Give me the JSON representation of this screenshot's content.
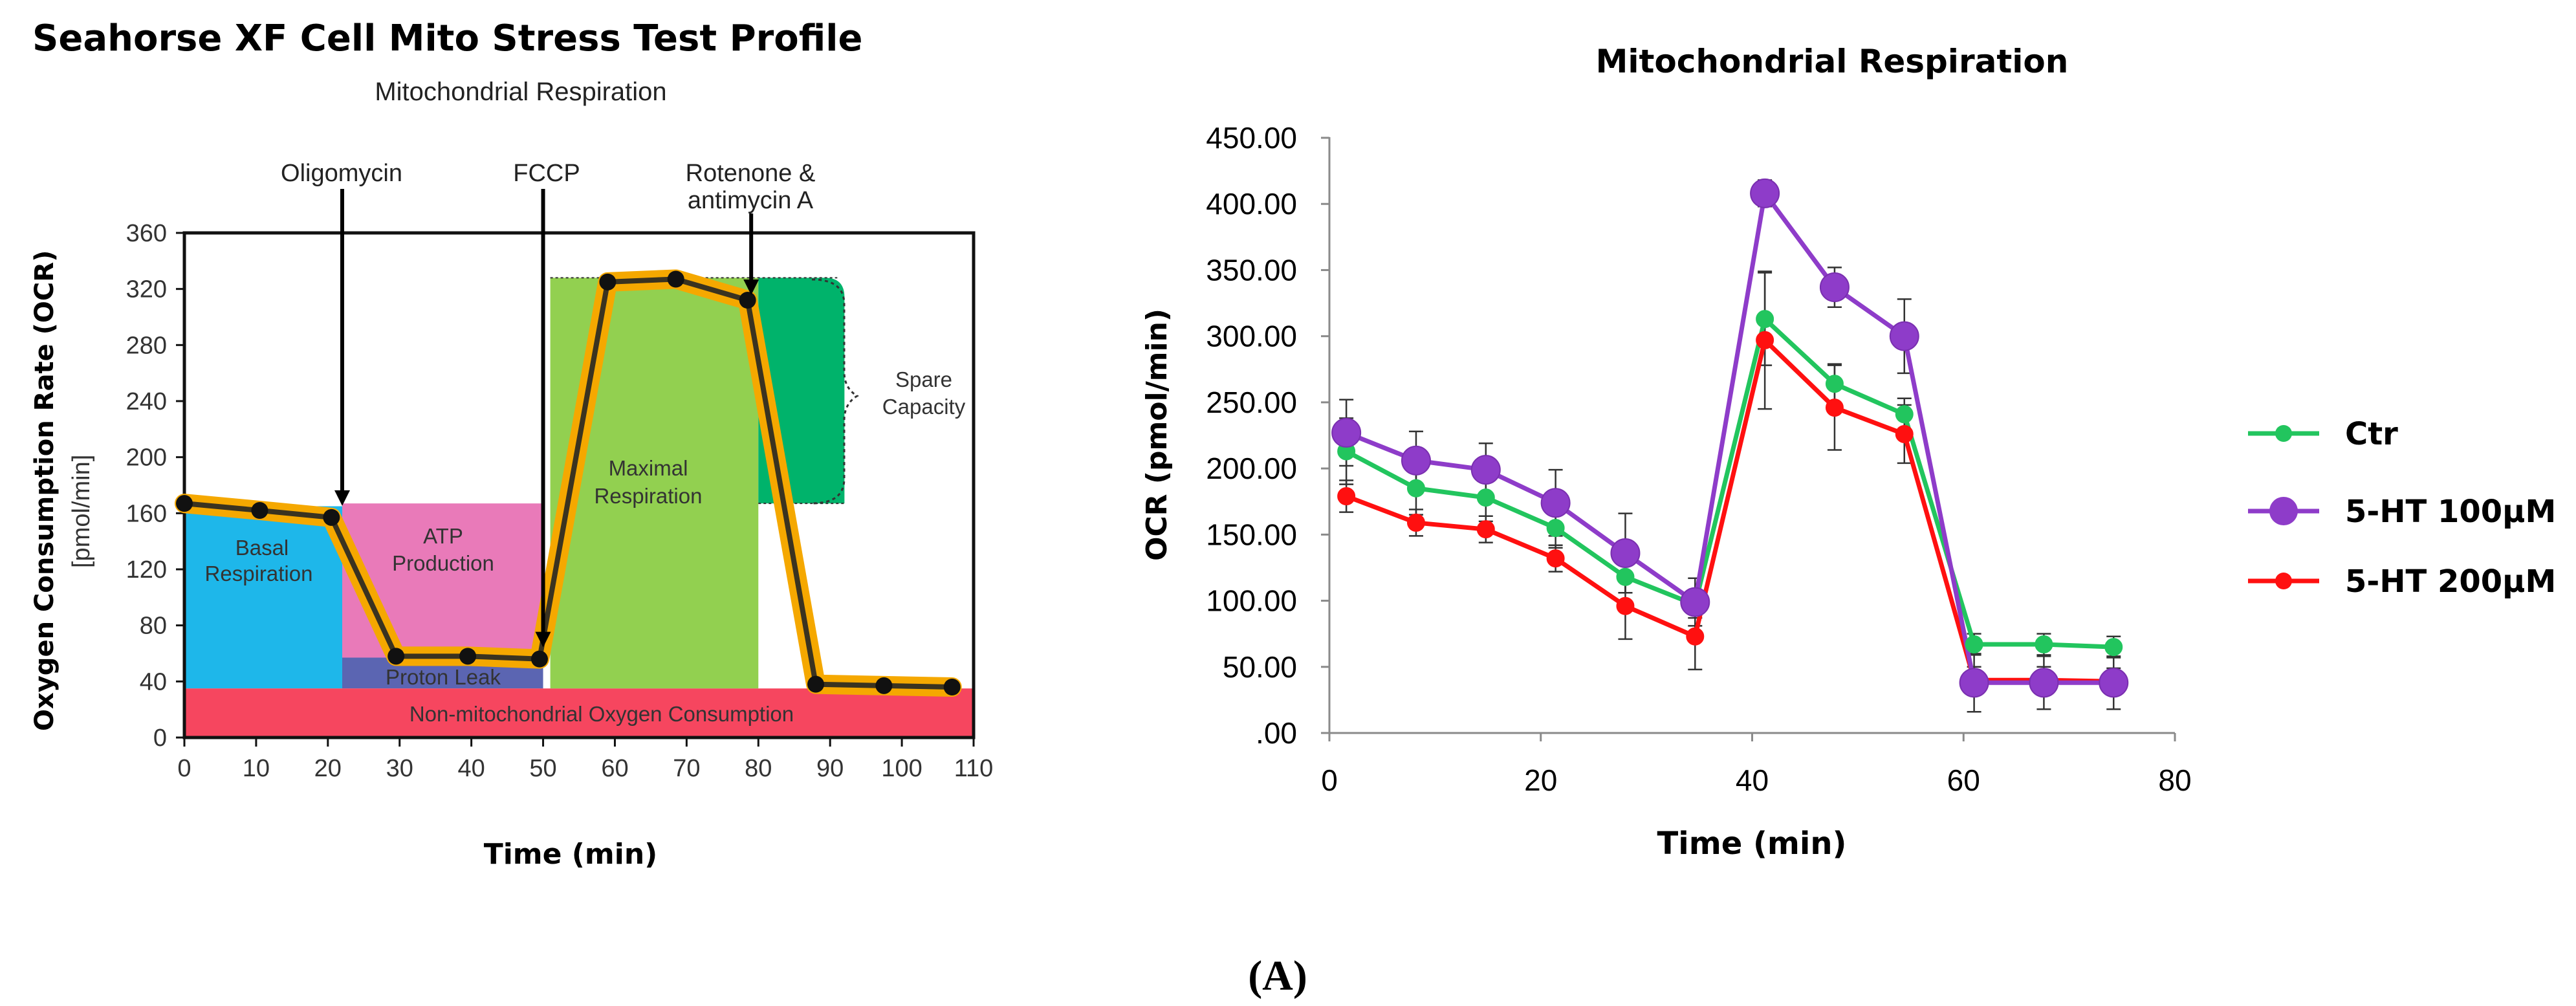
{
  "figure_label": "(A)",
  "colors": {
    "basal": "#1eb7ea",
    "atp": "#e97ab9",
    "proton": "#5b65b2",
    "nonmito": "#f6465f",
    "maximal": "#92d050",
    "spare": "#00b36b",
    "trace": "#f5a800",
    "ctr": "#22c55e",
    "ht100": "#8e3cc9",
    "ht200": "#ff1010"
  },
  "left_chart_text": {
    "header": "Seahorse XF Cell Mito Stress Test Profile",
    "annotations": {
      "oligomycin": "Oligomycin",
      "fccp": "FCCP",
      "rotenone_line1": "Rotenone &",
      "rotenone_line2": "antimycin A",
      "basal_line1": "Basal",
      "basal_line2": "Respiration",
      "atp_line1": "ATP",
      "atp_line2": "Production",
      "proton_leak": "Proton Leak",
      "maximal_line1": "Maximal",
      "maximal_line2": "Respiration",
      "spare_line1": "Spare",
      "spare_line2": "Capacity",
      "non_mito": "Non-mitochondrial Oxygen Consumption"
    }
  },
  "right_chart_text": {},
  "chart_data": [
    {
      "type": "line",
      "title": "Mitochondrial Respiration",
      "xlabel": "Time (min)",
      "ylabel_line1": "Oxygen Consumption Rate (OCR)",
      "ylabel_line2": "[pmol/min]",
      "xlim": [
        0,
        110
      ],
      "ylim": [
        0,
        360
      ],
      "xticks": [
        0,
        10,
        20,
        30,
        40,
        50,
        60,
        70,
        80,
        90,
        100,
        110
      ],
      "yticks": [
        0,
        40,
        80,
        120,
        160,
        200,
        240,
        280,
        320,
        360
      ],
      "series": [
        {
          "name": "OCR profile",
          "x": [
            0,
            10.5,
            20.5,
            29.5,
            39.5,
            49.5,
            59,
            68.5,
            78.5,
            88,
            97.5,
            107
          ],
          "values": [
            167,
            162,
            157,
            58,
            58,
            56,
            325,
            327,
            312,
            38,
            37,
            36
          ]
        }
      ],
      "regions": [
        {
          "name": "Basal Respiration",
          "x": [
            0,
            22
          ],
          "y": [
            35,
            165
          ]
        },
        {
          "name": "ATP Production",
          "x": [
            22,
            50
          ],
          "y": [
            57,
            167
          ]
        },
        {
          "name": "Proton Leak",
          "x": [
            22,
            50
          ],
          "y": [
            35,
            57
          ]
        },
        {
          "name": "Non-mitochondrial Oxygen Consumption",
          "x": [
            0,
            110
          ],
          "y": [
            0,
            35
          ]
        },
        {
          "name": "Maximal Respiration",
          "x": [
            51,
            80
          ],
          "y": [
            35,
            328
          ]
        },
        {
          "name": "Spare Capacity",
          "x": [
            80,
            92
          ],
          "y": [
            167,
            328
          ]
        }
      ],
      "injections": [
        {
          "label": "Oligomycin",
          "x": 22
        },
        {
          "label": "FCCP",
          "x": 50
        },
        {
          "label": "Rotenone & antimycin A",
          "x": 79
        }
      ]
    },
    {
      "type": "line",
      "title": "Mitochondrial Respiration",
      "xlabel": "Time (min)",
      "ylabel": "OCR (pmol/min)",
      "xlim": [
        0,
        80
      ],
      "ylim": [
        0,
        450
      ],
      "xticks": [
        0,
        20,
        40,
        60,
        80
      ],
      "ytick_values": [
        0,
        50,
        100,
        150,
        200,
        250,
        300,
        350,
        400,
        450
      ],
      "ytick_labels": [
        ".00",
        "50.00",
        "100.00",
        "150.00",
        "200.00",
        "250.00",
        "300.00",
        "350.00",
        "400.00",
        "450.00"
      ],
      "x": [
        1.6,
        8.2,
        14.8,
        21.4,
        28,
        34.6,
        41.2,
        47.8,
        54.4,
        61,
        67.6,
        74.2
      ],
      "series": [
        {
          "name": "Ctr",
          "color_key": "ctr",
          "marker": "small",
          "values": [
            213,
            185,
            178,
            155,
            118,
            97,
            313,
            264,
            241,
            67,
            67,
            65
          ],
          "error": [
            25,
            20,
            18,
            15,
            12,
            10,
            35,
            15,
            12,
            8,
            8,
            8
          ]
        },
        {
          "name": "5-HT 100µM",
          "color_key": "ht100",
          "marker": "large",
          "values": [
            227,
            206,
            199,
            174,
            136,
            99,
            408,
            337,
            300,
            38,
            38,
            38
          ],
          "error": [
            25,
            22,
            20,
            25,
            30,
            18,
            10,
            15,
            28,
            22,
            20,
            20
          ]
        },
        {
          "name": "5-HT 200µM",
          "color_key": "ht200",
          "marker": "small",
          "values": [
            179,
            159,
            154,
            132,
            96,
            73,
            297,
            246,
            226,
            40,
            40,
            39
          ],
          "error": [
            12,
            10,
            10,
            10,
            25,
            25,
            52,
            32,
            22,
            10,
            10,
            10
          ]
        }
      ],
      "legend_position": "right"
    }
  ]
}
